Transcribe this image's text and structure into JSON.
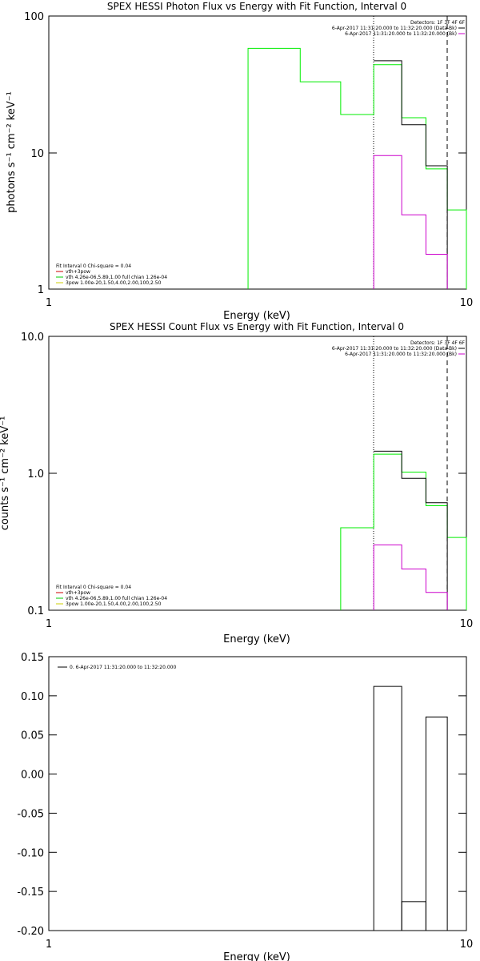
{
  "chart_data": [
    {
      "type": "line",
      "title": "SPEX HESSI Photon Flux vs Energy with Fit Function, Interval 0",
      "xlabel": "Energy (keV)",
      "ylabel": "photons s⁻¹ cm⁻² keV⁻¹",
      "xscale": "log",
      "yscale": "log",
      "xlim": [
        1,
        10
      ],
      "ylim": [
        1,
        100
      ],
      "xticks": [
        "1",
        "10"
      ],
      "yticks": [
        "1",
        "10",
        "100"
      ],
      "detectors_text": "Detectors: 1F 3F 4F 6F",
      "info_lines": [
        {
          "text": "6-Apr-2017 11:31:20.000 to 11:32:20.000 (Data-Bk)",
          "color": "#000000"
        },
        {
          "text": "6-Apr-2017 11:31:20.000 to 11:32:20.000 (Bk)",
          "color": "#cc00cc"
        }
      ],
      "fit_lines": [
        {
          "text": "Fit Interval 0   Chi-square = 0.04",
          "color": "#000000"
        },
        {
          "text": "vth+3pow",
          "color": "#cc0000"
        },
        {
          "text": "vth 4.26e-06,5.89,1.00  full chian 1.26e-04",
          "color": "#00cc00"
        },
        {
          "text": "3pow 1.00e-20,1.50,4.00,2.00,100,2.50",
          "color": "#cccc00"
        }
      ],
      "vlines": [
        {
          "x": 6.0,
          "style": "dotted"
        },
        {
          "x": 9.0,
          "style": "dashed"
        }
      ],
      "series": [
        {
          "color": "#00ee00",
          "edges": [
            3.0,
            4.0,
            5.0,
            6.0,
            7.0,
            8.0,
            9.0,
            10.0
          ],
          "values": [
            58,
            33,
            19,
            44,
            18,
            7.6,
            3.8
          ],
          "drop_start": true
        },
        {
          "color": "#000000",
          "edges": [
            6.0,
            7.0,
            8.0,
            9.0
          ],
          "values": [
            47,
            16,
            8.0
          ],
          "drop_start": false
        },
        {
          "color": "#cc00cc",
          "edges": [
            6.0,
            7.0,
            8.0,
            9.0
          ],
          "values": [
            9.5,
            3.5,
            1.8
          ],
          "drop_start": true
        }
      ]
    },
    {
      "type": "line",
      "title": "SPEX HESSI Count Flux vs Energy with Fit Function, Interval 0",
      "xlabel": "Energy (keV)",
      "ylabel": "counts s⁻¹ cm⁻² keV⁻¹",
      "xscale": "log",
      "yscale": "log",
      "xlim": [
        1,
        10
      ],
      "ylim": [
        0.1,
        10
      ],
      "xticks": [
        "1",
        "10"
      ],
      "yticks": [
        "0.1",
        "1.0",
        "10.0"
      ],
      "detectors_text": "Detectors: 1F 3F 4F 6F",
      "info_lines": [
        {
          "text": "6-Apr-2017 11:31:20.000 to 11:32:20.000 (Data-Bk)",
          "color": "#000000"
        },
        {
          "text": "6-Apr-2017 11:31:20.000 to 11:32:20.000 (Bk)",
          "color": "#cc00cc"
        }
      ],
      "fit_lines": [
        {
          "text": "Fit Interval 0   Chi-square = 0.04",
          "color": "#000000"
        },
        {
          "text": "vth+3pow",
          "color": "#cc0000"
        },
        {
          "text": "vth 4.26e-06,5.89,1.00  full chian 1.26e-04",
          "color": "#00cc00"
        },
        {
          "text": "3pow 1.00e-20,1.50,4.00,2.00,100,2.50",
          "color": "#cccc00"
        }
      ],
      "vlines": [
        {
          "x": 6.0,
          "style": "dotted"
        },
        {
          "x": 9.0,
          "style": "dashed"
        }
      ],
      "series": [
        {
          "color": "#00ee00",
          "edges": [
            5.0,
            6.0,
            7.0,
            8.0,
            9.0,
            10.0
          ],
          "values": [
            0.4,
            1.38,
            1.02,
            0.58,
            0.34
          ],
          "drop_start": true
        },
        {
          "color": "#000000",
          "edges": [
            6.0,
            7.0,
            8.0,
            9.0
          ],
          "values": [
            1.45,
            0.92,
            0.61
          ],
          "drop_start": false
        },
        {
          "color": "#cc00cc",
          "edges": [
            6.0,
            7.0,
            8.0,
            9.0
          ],
          "values": [
            0.3,
            0.2,
            0.135
          ],
          "drop_start": true
        }
      ]
    },
    {
      "type": "line",
      "title": "",
      "xlabel": "Energy (keV)",
      "ylabel": "",
      "xscale": "log",
      "yscale": "linear",
      "xlim": [
        1,
        10
      ],
      "ylim": [
        -0.2,
        0.15
      ],
      "xticks": [
        "1",
        "10"
      ],
      "yticks": [
        "-0.20",
        "-0.15",
        "-0.10",
        "-0.05",
        "0.00",
        "0.05",
        "0.10",
        "0.15"
      ],
      "legend": {
        "text": "0. 6-Apr-2017 11:31:20.000 to 11:32:20.000",
        "color": "#000000"
      },
      "bars": [
        {
          "x0": 6.0,
          "x1": 7.0,
          "value": 0.112
        },
        {
          "x0": 7.0,
          "x1": 8.0,
          "value": -0.163
        },
        {
          "x0": 8.0,
          "x1": 9.0,
          "value": 0.073
        }
      ]
    }
  ]
}
